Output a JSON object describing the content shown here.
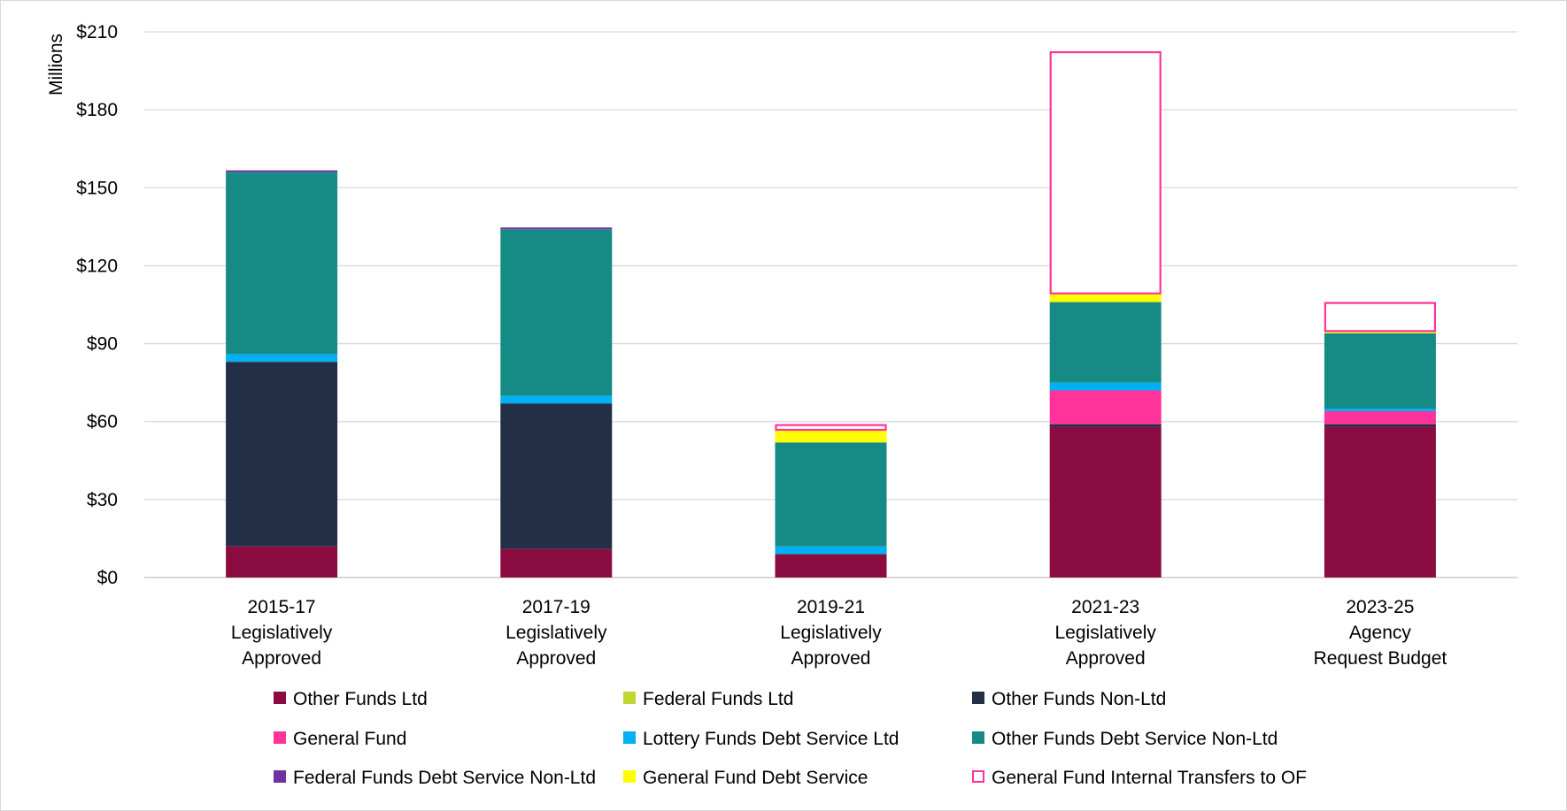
{
  "chart_data": {
    "type": "bar",
    "stacked": true,
    "ylabel": "Millions",
    "ylim": [
      0,
      210
    ],
    "y_ticks": [
      "$0",
      "$30",
      "$60",
      "$90",
      "$120",
      "$150",
      "$180",
      "$210"
    ],
    "y_tick_values": [
      0,
      30,
      60,
      90,
      120,
      150,
      180,
      210
    ],
    "grid": true,
    "legend_position": "bottom",
    "categories": [
      [
        "2015-17",
        "Legislatively",
        "Approved"
      ],
      [
        "2017-19",
        "Legislatively",
        "Approved"
      ],
      [
        "2019-21",
        "Legislatively",
        "Approved"
      ],
      [
        "2021-23",
        "Legislatively",
        "Approved"
      ],
      [
        "2023-25",
        "Agency",
        "Request Budget"
      ]
    ],
    "series": [
      {
        "name": "Other Funds Ltd",
        "color": "#8B0C40",
        "values": [
          12,
          11,
          9,
          58,
          58
        ]
      },
      {
        "name": "Federal Funds Ltd",
        "color": "#BFD730",
        "values": [
          0,
          0,
          0,
          0,
          0
        ]
      },
      {
        "name": "Other Funds Non-Ltd",
        "color": "#222F46",
        "values": [
          71,
          56,
          0,
          1,
          1
        ]
      },
      {
        "name": "General Fund",
        "color": "#FF3399",
        "values": [
          0,
          0,
          0,
          13,
          5
        ]
      },
      {
        "name": "Lottery Funds Debt Service Ltd",
        "color": "#00B0F0",
        "values": [
          3,
          3,
          3,
          3,
          1
        ]
      },
      {
        "name": "Other Funds Debt Service Non-Ltd",
        "color": "#168B85",
        "values": [
          70,
          64,
          40,
          31,
          29
        ]
      },
      {
        "name": "Federal Funds Debt Service Non-Ltd",
        "color": "#7030A0",
        "values": [
          0.7,
          0.7,
          0,
          0,
          0
        ]
      },
      {
        "name": "General Fund Debt Service",
        "color": "#FFFF00",
        "values": [
          0,
          0,
          4.5,
          3,
          0.5
        ]
      },
      {
        "name": "General Fund Internal Transfers to OF",
        "color": "#FF3399",
        "outline": true,
        "values": [
          0,
          0,
          2.5,
          93.5,
          11.5
        ]
      }
    ]
  }
}
